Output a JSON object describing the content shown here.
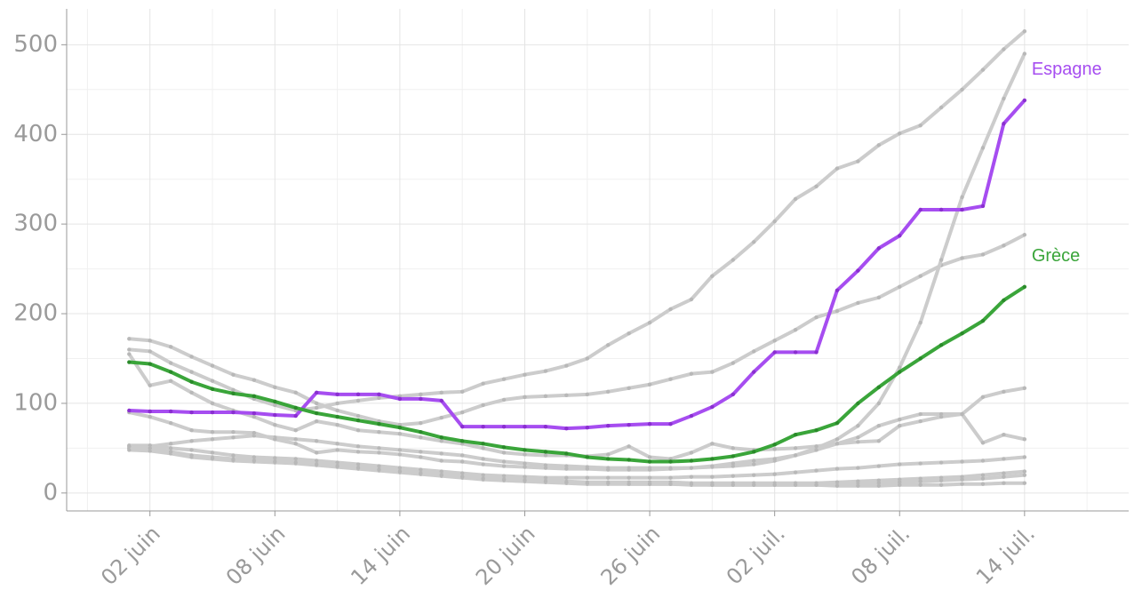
{
  "chart_data": {
    "type": "line",
    "x": [
      "06-01",
      "06-02",
      "06-03",
      "06-04",
      "06-05",
      "06-06",
      "06-07",
      "06-08",
      "06-09",
      "06-10",
      "06-11",
      "06-12",
      "06-13",
      "06-14",
      "06-15",
      "06-16",
      "06-17",
      "06-18",
      "06-19",
      "06-20",
      "06-21",
      "06-22",
      "06-23",
      "06-24",
      "06-25",
      "06-26",
      "06-27",
      "06-28",
      "06-29",
      "06-30",
      "07-01",
      "07-02",
      "07-03",
      "07-04",
      "07-05",
      "07-06",
      "07-07",
      "07-08",
      "07-09",
      "07-10",
      "07-11",
      "07-12",
      "07-13",
      "07-14"
    ],
    "xlim": [
      "05-29",
      "07-19"
    ],
    "xticks": [
      {
        "value": "06-02",
        "label": "02 juin"
      },
      {
        "value": "06-08",
        "label": "08 juin"
      },
      {
        "value": "06-14",
        "label": "14 juin"
      },
      {
        "value": "06-20",
        "label": "20 juin"
      },
      {
        "value": "06-26",
        "label": "26 juin"
      },
      {
        "value": "07-02",
        "label": "02 juil."
      },
      {
        "value": "07-08",
        "label": "08 juil."
      },
      {
        "value": "07-14",
        "label": "14 juil."
      }
    ],
    "ylim": [
      -20,
      540
    ],
    "yticks": [
      0,
      100,
      200,
      300,
      400,
      500
    ],
    "grid": true,
    "series": [
      {
        "color": "#cccccc",
        "values": [
          160,
          158,
          145,
          135,
          125,
          115,
          105,
          98,
          92,
          95,
          100,
          103,
          106,
          108,
          110,
          112,
          113,
          122,
          127,
          132,
          136,
          142,
          150,
          165,
          178,
          190,
          205,
          216,
          242,
          260,
          280,
          303,
          328,
          342,
          362,
          370,
          388,
          401,
          410,
          430,
          450,
          472,
          495,
          515
        ]
      },
      {
        "color": "#cccccc",
        "values": [
          172,
          170,
          163,
          152,
          142,
          132,
          126,
          118,
          112,
          100,
          92,
          86,
          80,
          76,
          78,
          84,
          90,
          98,
          104,
          107,
          108,
          109,
          110,
          113,
          117,
          121,
          127,
          133,
          135,
          145,
          158,
          170,
          182,
          196,
          203,
          212,
          218,
          230,
          242,
          254,
          262,
          266,
          276,
          288
        ]
      },
      {
        "color": "#cccccc",
        "values": [
          50,
          52,
          55,
          58,
          60,
          62,
          64,
          62,
          60,
          58,
          55,
          52,
          50,
          48,
          46,
          44,
          42,
          38,
          35,
          33,
          31,
          30,
          29,
          28,
          28,
          28,
          28,
          28,
          29,
          30,
          32,
          36,
          42,
          50,
          60,
          75,
          100,
          140,
          190,
          260,
          330,
          385,
          440,
          490
        ]
      },
      {
        "color": "#cccccc",
        "values": [
          90,
          85,
          78,
          70,
          68,
          68,
          67,
          60,
          55,
          45,
          48,
          46,
          45,
          43,
          40,
          36,
          35,
          32,
          30,
          29,
          28,
          27,
          27,
          26,
          26,
          26,
          27,
          28,
          30,
          33,
          36,
          38,
          42,
          48,
          55,
          62,
          75,
          82,
          88,
          88,
          88,
          107,
          113,
          117
        ]
      },
      {
        "color": "#cccccc",
        "values": [
          155,
          120,
          125,
          112,
          100,
          92,
          85,
          76,
          70,
          80,
          76,
          70,
          68,
          66,
          62,
          58,
          55,
          50,
          45,
          43,
          42,
          42,
          41,
          43,
          52,
          40,
          38,
          45,
          55,
          50,
          48,
          49,
          50,
          52,
          55,
          57,
          58,
          75,
          80,
          85,
          88,
          56,
          65,
          60
        ]
      },
      {
        "color": "#cccccc",
        "values": [
          53,
          53,
          50,
          48,
          45,
          42,
          40,
          39,
          38,
          36,
          34,
          32,
          30,
          28,
          26,
          24,
          22,
          20,
          19,
          18,
          17,
          17,
          17,
          17,
          17,
          17,
          17,
          18,
          18,
          19,
          20,
          21,
          23,
          25,
          27,
          28,
          30,
          32,
          33,
          34,
          35,
          36,
          38,
          40
        ]
      },
      {
        "color": "#cccccc",
        "values": [
          50,
          48,
          45,
          42,
          40,
          38,
          37,
          36,
          35,
          33,
          31,
          29,
          27,
          25,
          23,
          21,
          19,
          17,
          16,
          15,
          14,
          13,
          12,
          12,
          12,
          12,
          12,
          11,
          11,
          11,
          11,
          11,
          11,
          11,
          12,
          13,
          14,
          15,
          16,
          17,
          18,
          20,
          22,
          24
        ]
      },
      {
        "color": "#cccccc",
        "values": [
          48,
          47,
          44,
          40,
          38,
          36,
          35,
          34,
          33,
          31,
          29,
          27,
          25,
          23,
          21,
          19,
          17,
          15,
          14,
          13,
          12,
          11,
          10,
          10,
          10,
          10,
          10,
          9,
          9,
          9,
          9,
          9,
          9,
          9,
          9,
          10,
          11,
          12,
          13,
          14,
          15,
          16,
          18,
          20
        ]
      },
      {
        "color": "#cccccc",
        "values": [
          52,
          50,
          46,
          42,
          39,
          37,
          36,
          35,
          34,
          32,
          30,
          28,
          26,
          24,
          22,
          20,
          18,
          16,
          15,
          14,
          13,
          12,
          11,
          11,
          10,
          10,
          10,
          10,
          9,
          9,
          9,
          9,
          9,
          9,
          8,
          8,
          8,
          9,
          9,
          9,
          10,
          10,
          11,
          11
        ]
      },
      {
        "name": "Espagne",
        "color": "#a64df0",
        "values": [
          92,
          91,
          91,
          90,
          90,
          90,
          89,
          87,
          86,
          112,
          110,
          110,
          110,
          105,
          105,
          103,
          74,
          74,
          74,
          74,
          74,
          72,
          73,
          75,
          76,
          77,
          77,
          86,
          96,
          110,
          135,
          157,
          157,
          157,
          226,
          248,
          273,
          287,
          316,
          316,
          316,
          320,
          412,
          438
        ]
      },
      {
        "name": "Grèce",
        "color": "#3aa53a",
        "values": [
          146,
          144,
          135,
          124,
          116,
          111,
          108,
          102,
          95,
          89,
          85,
          81,
          77,
          73,
          68,
          62,
          58,
          55,
          51,
          48,
          46,
          44,
          40,
          38,
          37,
          35,
          35,
          36,
          38,
          41,
          46,
          54,
          65,
          70,
          78,
          100,
          118,
          135,
          150,
          165,
          178,
          192,
          215,
          230
        ]
      }
    ]
  }
}
